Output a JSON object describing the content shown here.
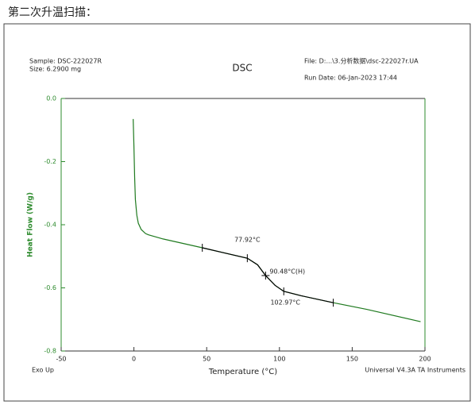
{
  "header": "第二次升温扫描：",
  "chart_data": {
    "type": "line",
    "title": "DSC",
    "sample": "Sample: DSC-222027R",
    "size": "Size:  6.2900 mg",
    "file": "File: D:...\\3.分析数据\\dsc-222027r.UA",
    "run_date": "Run Date: 06-Jan-2023 17:44",
    "exo": "Exo Up",
    "instrument": "Universal V4.3A TA Instruments",
    "x_label": "Temperature (°C)",
    "y_label": "Heat Flow (W/g)",
    "xlim": [
      -50,
      200
    ],
    "xticks": [
      -50,
      0,
      50,
      100,
      150,
      200
    ],
    "ylim": [
      -0.8,
      0
    ],
    "yticks": [
      {
        "value": 0,
        "label": "0.0"
      },
      -0.2,
      -0.4,
      -0.6,
      -0.8
    ],
    "axis_color": "#2e8b2e",
    "series": [
      {
        "color": "#1f7a1f",
        "x": [
          -0.5,
          0,
          0.5,
          1,
          2,
          3,
          5,
          8,
          10,
          20,
          47,
          60,
          77.92,
          85,
          90.48,
          97,
          102.97,
          115,
          137,
          160,
          197
        ],
        "values": [
          -0.065,
          -0.15,
          -0.25,
          -0.32,
          -0.37,
          -0.395,
          -0.415,
          -0.428,
          -0.432,
          -0.445,
          -0.473,
          -0.487,
          -0.506,
          -0.527,
          -0.561,
          -0.592,
          -0.611,
          -0.625,
          -0.647,
          -0.668,
          -0.707
        ]
      },
      {
        "color": "#000000",
        "x": [
          47,
          60,
          77.92,
          85,
          90.48,
          97,
          102.97,
          115,
          137
        ],
        "values": [
          -0.473,
          -0.487,
          -0.506,
          -0.527,
          -0.561,
          -0.592,
          -0.611,
          -0.625,
          -0.647
        ]
      }
    ],
    "markers": {
      "x": [
        47,
        77.92,
        90.48,
        102.97,
        137
      ],
      "values": [
        -0.473,
        -0.506,
        -0.561,
        -0.611,
        -0.647
      ]
    },
    "annotations": [
      "77.92°C",
      "90.48°C(H)",
      "102.97°C"
    ]
  }
}
